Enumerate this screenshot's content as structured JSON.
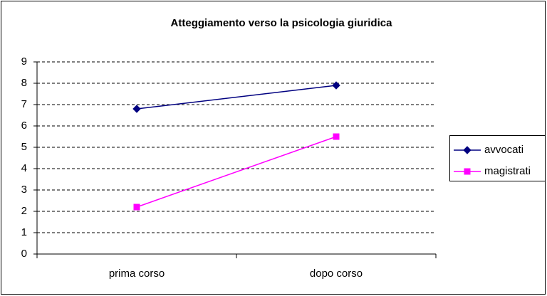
{
  "chart_data": {
    "type": "line",
    "title": "Atteggiamento verso la psicologia giuridica",
    "categories": [
      "prima corso",
      "dopo corso"
    ],
    "series": [
      {
        "name": "avvocati",
        "color": "#000080",
        "values": [
          6.8,
          7.9
        ]
      },
      {
        "name": "magistrati",
        "color": "#ff00ff",
        "values": [
          2.2,
          5.5
        ]
      }
    ],
    "ylim": [
      0,
      9
    ],
    "yticks": [
      0,
      1,
      2,
      3,
      4,
      5,
      6,
      7,
      8,
      9
    ],
    "grid": true,
    "legend": "right"
  }
}
